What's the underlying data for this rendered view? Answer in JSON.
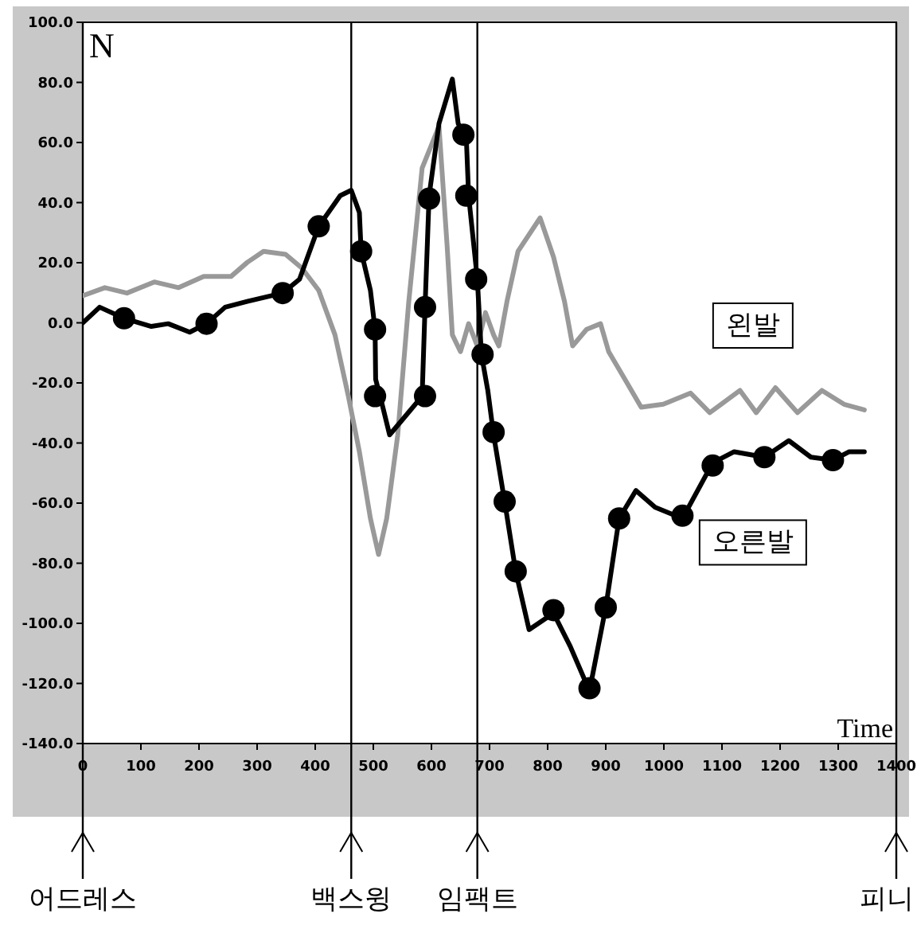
{
  "chart_data": {
    "type": "line",
    "ylabel": "N",
    "xlabel": "Time",
    "xlim": [
      0,
      1400
    ],
    "ylim": [
      -140,
      100
    ],
    "xticks": [
      0,
      100,
      200,
      300,
      400,
      500,
      600,
      700,
      800,
      900,
      1000,
      1100,
      1200,
      1300,
      1400
    ],
    "yticks": [
      {
        "value": 100,
        "label": "100.0"
      },
      {
        "value": 80,
        "label": "80.0"
      },
      {
        "value": 60,
        "label": "60.0"
      },
      {
        "value": 40,
        "label": "40.0"
      },
      {
        "value": 20,
        "label": "20.0"
      },
      {
        "value": 0,
        "label": "0.0"
      },
      {
        "value": -20,
        "label": "-20.0"
      },
      {
        "value": -40,
        "label": "-40.0"
      },
      {
        "value": -60,
        "label": "-60.0"
      },
      {
        "value": -80,
        "label": "-80.0"
      },
      {
        "value": -100,
        "label": "-100.0"
      },
      {
        "value": -120,
        "label": "-120.0"
      },
      {
        "value": -140,
        "label": "-140.0"
      }
    ],
    "grid": false,
    "series": [
      {
        "name": "왼발",
        "color": "#999999",
        "x": [
          0,
          38,
          76,
          123,
          165,
          208,
          255,
          283,
          311,
          349,
          377,
          406,
          434,
          457,
          476,
          495,
          509,
          523,
          542,
          561,
          584,
          613,
          627,
          636,
          650,
          664,
          679,
          693,
          707,
          716,
          730,
          749,
          787,
          810,
          829,
          843,
          867,
          891,
          905,
          933,
          961,
          999,
          1046,
          1079,
          1131,
          1159,
          1192,
          1230,
          1272,
          1310,
          1345
        ],
        "values": [
          9,
          11.7,
          9.9,
          13.6,
          11.7,
          15.4,
          15.4,
          20.1,
          23.8,
          22.8,
          18.2,
          10.8,
          -4,
          -24.4,
          -42.9,
          -65.1,
          -77.1,
          -65.1,
          -37.3,
          7.1,
          51.5,
          65.4,
          25.6,
          -4,
          -9.6,
          -0.3,
          -7.7,
          3.4,
          -4,
          -7.7,
          7.1,
          23.8,
          34.9,
          22,
          7.1,
          -7.7,
          -2.2,
          -0.3,
          -9.6,
          -18.8,
          -28.1,
          -27.1,
          -23.4,
          -29.9,
          -22.5,
          -29.9,
          -21.6,
          -29.9,
          -22.5,
          -27.1,
          -29
        ]
      },
      {
        "name": "오른발",
        "color": "#000000",
        "x": [
          0,
          29,
          71,
          118,
          147,
          184,
          213,
          245,
          283,
          344,
          373,
          406,
          443,
          462,
          476,
          479,
          495,
          503,
          504,
          514,
          528,
          552,
          584,
          589,
          596,
          613,
          636,
          646,
          660,
          664,
          679,
          686,
          697,
          707,
          726,
          745,
          768,
          810,
          839,
          872,
          900,
          923,
          952,
          985,
          1032,
          1084,
          1121,
          1173,
          1215,
          1253,
          1291,
          1319,
          1345
        ],
        "values": [
          0,
          5.2,
          1.5,
          -1.2,
          -0.3,
          -3.1,
          -0.3,
          5.2,
          7.1,
          9.9,
          14.5,
          32.1,
          42.3,
          44.1,
          36.7,
          23.8,
          10.8,
          -2.2,
          -18.8,
          -26.2,
          -37.3,
          -31.8,
          -24.4,
          5.2,
          42.3,
          66.3,
          81.1,
          66.3,
          61.7,
          42.3,
          14.5,
          -10.5,
          -22.5,
          -37.3,
          -59.5,
          -82.7,
          -102.1,
          -96.6,
          -107.7,
          -122.5,
          -94.7,
          -65.1,
          -55.8,
          -61.4,
          -65.1,
          -46.6,
          -42.9,
          -44.7,
          -39.2,
          -44.7,
          -45.7,
          -42.9,
          -42.9
        ]
      },
      {
        "type": "scatter",
        "color": "#000000",
        "marker": "circle",
        "x": [
          71,
          213,
          344,
          406,
          479,
          503,
          503,
          589,
          596,
          589,
          655,
          660,
          677,
          688,
          707,
          726,
          745,
          810,
          872,
          900,
          923,
          1032,
          1084,
          1173,
          1291
        ],
        "values": [
          1.5,
          -0.3,
          9.9,
          32.1,
          23.8,
          -2.2,
          -24.4,
          5.2,
          41.3,
          -24.4,
          62.6,
          42.3,
          14.5,
          -10.5,
          -36.4,
          -59.5,
          -82.7,
          -95.6,
          -121.6,
          -94.7,
          -65.1,
          -64.2,
          -47.5,
          -44.7,
          -45.7
        ]
      }
    ],
    "ref_lines": [
      {
        "axis": "x",
        "value": 0,
        "label": "어드레스"
      },
      {
        "axis": "x",
        "value": 462,
        "label": "백스윙"
      },
      {
        "axis": "x",
        "value": 679,
        "label": "임팩트"
      },
      {
        "axis": "x",
        "value": 1400,
        "label": "피니"
      }
    ]
  }
}
